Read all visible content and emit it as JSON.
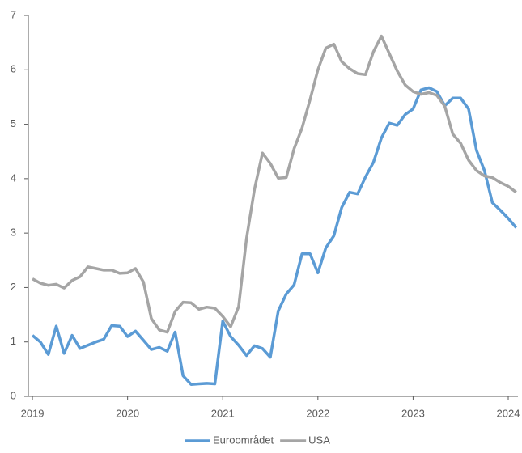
{
  "chart_data": {
    "type": "line",
    "x": [
      2019,
      2019.083,
      2019.167,
      2019.25,
      2019.333,
      2019.417,
      2019.5,
      2019.583,
      2019.667,
      2019.75,
      2019.833,
      2019.917,
      2020,
      2020.083,
      2020.167,
      2020.25,
      2020.333,
      2020.417,
      2020.5,
      2020.583,
      2020.667,
      2020.75,
      2020.833,
      2020.917,
      2021,
      2021.083,
      2021.167,
      2021.25,
      2021.333,
      2021.417,
      2021.5,
      2021.583,
      2021.667,
      2021.75,
      2021.833,
      2021.917,
      2022,
      2022.083,
      2022.167,
      2022.25,
      2022.333,
      2022.417,
      2022.5,
      2022.583,
      2022.667,
      2022.75,
      2022.833,
      2022.917,
      2023,
      2023.083,
      2023.167,
      2023.25,
      2023.333,
      2023.417,
      2023.5,
      2023.583,
      2023.667,
      2023.75,
      2023.833,
      2023.917,
      2024,
      2024.083
    ],
    "series": [
      {
        "name": "Euroområdet",
        "color": "#5b9bd5",
        "values": [
          1.12,
          1.0,
          0.77,
          1.29,
          0.79,
          1.12,
          0.88,
          0.94,
          1.0,
          1.05,
          1.3,
          1.29,
          1.1,
          1.2,
          1.03,
          0.86,
          0.9,
          0.83,
          1.18,
          0.38,
          0.22,
          0.23,
          0.24,
          0.23,
          1.38,
          1.1,
          0.94,
          0.75,
          0.93,
          0.88,
          0.72,
          1.57,
          1.88,
          2.05,
          2.62,
          2.62,
          2.27,
          2.73,
          2.95,
          3.47,
          3.75,
          3.72,
          4.03,
          4.3,
          4.75,
          5.02,
          4.98,
          5.18,
          5.28,
          5.63,
          5.67,
          5.6,
          5.34,
          5.48,
          5.48,
          5.28,
          4.52,
          4.15,
          3.56,
          3.42,
          3.27,
          3.1
        ]
      },
      {
        "name": "USA",
        "color": "#a5a5a5",
        "values": [
          2.16,
          2.08,
          2.04,
          2.06,
          1.99,
          2.13,
          2.2,
          2.38,
          2.35,
          2.32,
          2.32,
          2.26,
          2.27,
          2.35,
          2.1,
          1.43,
          1.22,
          1.18,
          1.56,
          1.73,
          1.72,
          1.6,
          1.64,
          1.62,
          1.47,
          1.28,
          1.65,
          2.9,
          3.8,
          4.47,
          4.28,
          4.01,
          4.02,
          4.55,
          4.93,
          5.45,
          6.0,
          6.4,
          6.47,
          6.15,
          6.02,
          5.93,
          5.91,
          6.33,
          6.62,
          6.3,
          5.98,
          5.72,
          5.6,
          5.55,
          5.58,
          5.53,
          5.33,
          4.82,
          4.65,
          4.34,
          4.15,
          4.05,
          4.02,
          3.93,
          3.86,
          3.75
        ]
      }
    ],
    "xlim": [
      2018.957,
      2024.102
    ],
    "xticks": [
      2019,
      2020,
      2021,
      2022,
      2023,
      2024
    ],
    "ylim": [
      0,
      7
    ],
    "yticks": [
      0,
      1,
      2,
      3,
      4,
      5,
      6,
      7
    ],
    "legend": "bottom"
  }
}
